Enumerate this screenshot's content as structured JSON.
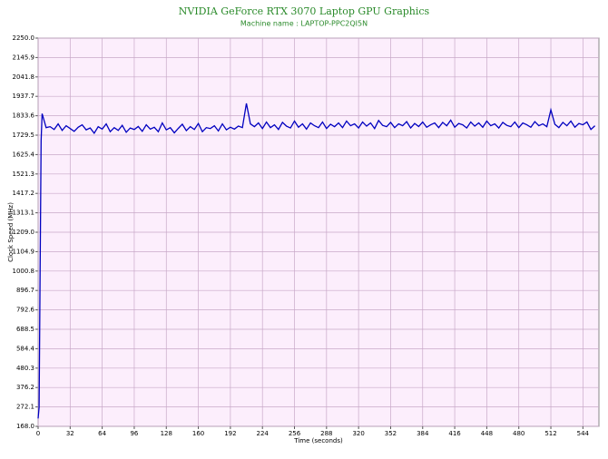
{
  "chart_data": {
    "type": "line",
    "title": "NVIDIA GeForce RTX 3070 Laptop GPU Graphics",
    "subtitle": "Machine name : LAPTOP-PPC2QI5N",
    "xlabel": "Time (seconds)",
    "ylabel": "Clock Speed (MHz)",
    "color": "#0000c0",
    "grid": true,
    "xlim": [
      0,
      560
    ],
    "xticks": [
      0,
      32,
      64,
      96,
      128,
      160,
      192,
      224,
      256,
      288,
      320,
      352,
      384,
      416,
      448,
      480,
      512,
      544
    ],
    "ylim": [
      168.0,
      2250.0
    ],
    "yticks": [
      {
        "value": 168.0,
        "label": "168.0"
      },
      272.1,
      376.2,
      480.3,
      584.4,
      688.5,
      792.6,
      896.7,
      1000.8,
      1104.9,
      {
        "value": 1209.0,
        "label": "1209.0"
      },
      1313.1,
      1417.2,
      1521.3,
      1625.4,
      1729.5,
      1833.6,
      1937.7,
      2041.8,
      2145.9,
      {
        "value": 2250.0,
        "label": "2250.0"
      }
    ],
    "x": [
      0,
      1,
      2,
      3,
      4,
      8,
      12,
      16,
      20,
      24,
      28,
      32,
      36,
      40,
      44,
      48,
      52,
      56,
      60,
      64,
      68,
      72,
      76,
      80,
      84,
      88,
      92,
      96,
      100,
      104,
      108,
      112,
      116,
      120,
      124,
      128,
      132,
      136,
      140,
      144,
      148,
      152,
      156,
      160,
      164,
      168,
      172,
      176,
      180,
      184,
      188,
      192,
      196,
      200,
      204,
      208,
      212,
      216,
      220,
      224,
      228,
      232,
      236,
      240,
      244,
      248,
      252,
      256,
      260,
      264,
      268,
      272,
      276,
      280,
      284,
      288,
      292,
      296,
      300,
      304,
      308,
      312,
      316,
      320,
      324,
      328,
      332,
      336,
      340,
      344,
      348,
      352,
      356,
      360,
      364,
      368,
      372,
      376,
      380,
      384,
      388,
      392,
      396,
      400,
      404,
      408,
      412,
      416,
      420,
      424,
      428,
      432,
      436,
      440,
      444,
      448,
      452,
      456,
      460,
      464,
      468,
      472,
      476,
      480,
      484,
      488,
      492,
      496,
      500,
      504,
      508,
      512,
      516,
      520,
      524,
      528,
      532,
      536,
      540,
      544,
      548,
      552,
      556
    ],
    "values": [
      210,
      270,
      1000,
      1700,
      1845,
      1770,
      1775,
      1760,
      1790,
      1755,
      1780,
      1765,
      1750,
      1772,
      1785,
      1758,
      1768,
      1740,
      1775,
      1762,
      1790,
      1748,
      1770,
      1755,
      1782,
      1745,
      1768,
      1760,
      1776,
      1750,
      1785,
      1762,
      1772,
      1748,
      1795,
      1758,
      1770,
      1742,
      1766,
      1788,
      1754,
      1775,
      1760,
      1792,
      1748,
      1770,
      1765,
      1780,
      1752,
      1790,
      1758,
      1772,
      1762,
      1778,
      1770,
      1900,
      1790,
      1775,
      1795,
      1765,
      1800,
      1770,
      1785,
      1760,
      1798,
      1778,
      1768,
      1805,
      1772,
      1790,
      1762,
      1795,
      1780,
      1770,
      1800,
      1765,
      1788,
      1775,
      1795,
      1770,
      1805,
      1780,
      1790,
      1768,
      1800,
      1778,
      1795,
      1765,
      1808,
      1782,
      1775,
      1798,
      1770,
      1790,
      1780,
      1802,
      1768,
      1792,
      1776,
      1800,
      1772,
      1785,
      1795,
      1770,
      1798,
      1780,
      1810,
      1772,
      1792,
      1785,
      1768,
      1800,
      1778,
      1795,
      1772,
      1805,
      1780,
      1790,
      1768,
      1798,
      1782,
      1775,
      1800,
      1770,
      1795,
      1785,
      1772,
      1802,
      1780,
      1790,
      1775,
      1865,
      1788,
      1770,
      1798,
      1780,
      1805,
      1772,
      1792,
      1785,
      1800,
      1760,
      1780
    ]
  }
}
